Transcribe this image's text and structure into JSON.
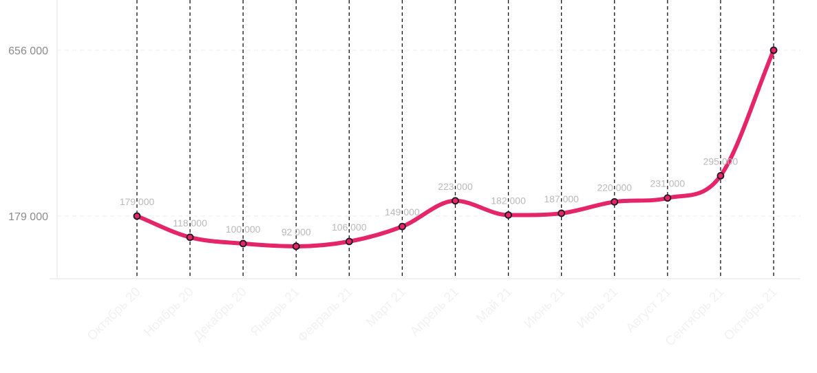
{
  "chart_data": {
    "type": "line",
    "title": "",
    "xlabel": "",
    "ylabel": "",
    "categories": [
      "Октябрь 20",
      "Ноябрь 20",
      "Декабрь 20",
      "Январь 21",
      "Февраль 21",
      "Март 21",
      "Апрель 21",
      "Май 21",
      "Июнь 21",
      "Июль 21",
      "Август 21",
      "Сентябрь 21",
      "Октябрь 21"
    ],
    "series": [
      {
        "values": [
          179000,
          118000,
          100000,
          92000,
          106000,
          149000,
          223000,
          182000,
          187000,
          220000,
          231000,
          295000,
          656000
        ],
        "labels": [
          "179 000",
          "118 000",
          "100 000",
          "92 000",
          "106 000",
          "149 000",
          "223 000",
          "182 000",
          "187 000",
          "220 000",
          "231 000",
          "295 000",
          ""
        ]
      }
    ],
    "y_ticks": [
      {
        "value": 179000,
        "label": "179 000"
      },
      {
        "value": 656000,
        "label": "656 000"
      }
    ],
    "ylim": [
      0,
      800000
    ],
    "grid": "horizontal dashed at tick values; vertical dashed lines at each category",
    "colors": {
      "line": "#e5256a",
      "point_fill": "#e5256a",
      "point_stroke": "#1a1a1a",
      "gridline": "#ececec",
      "vline": "#111111",
      "axis": "#e3e3e3",
      "tick_text": "#8a8a8a",
      "data_label": "#b9b9b9",
      "x_label": "#f1f1f1"
    }
  }
}
